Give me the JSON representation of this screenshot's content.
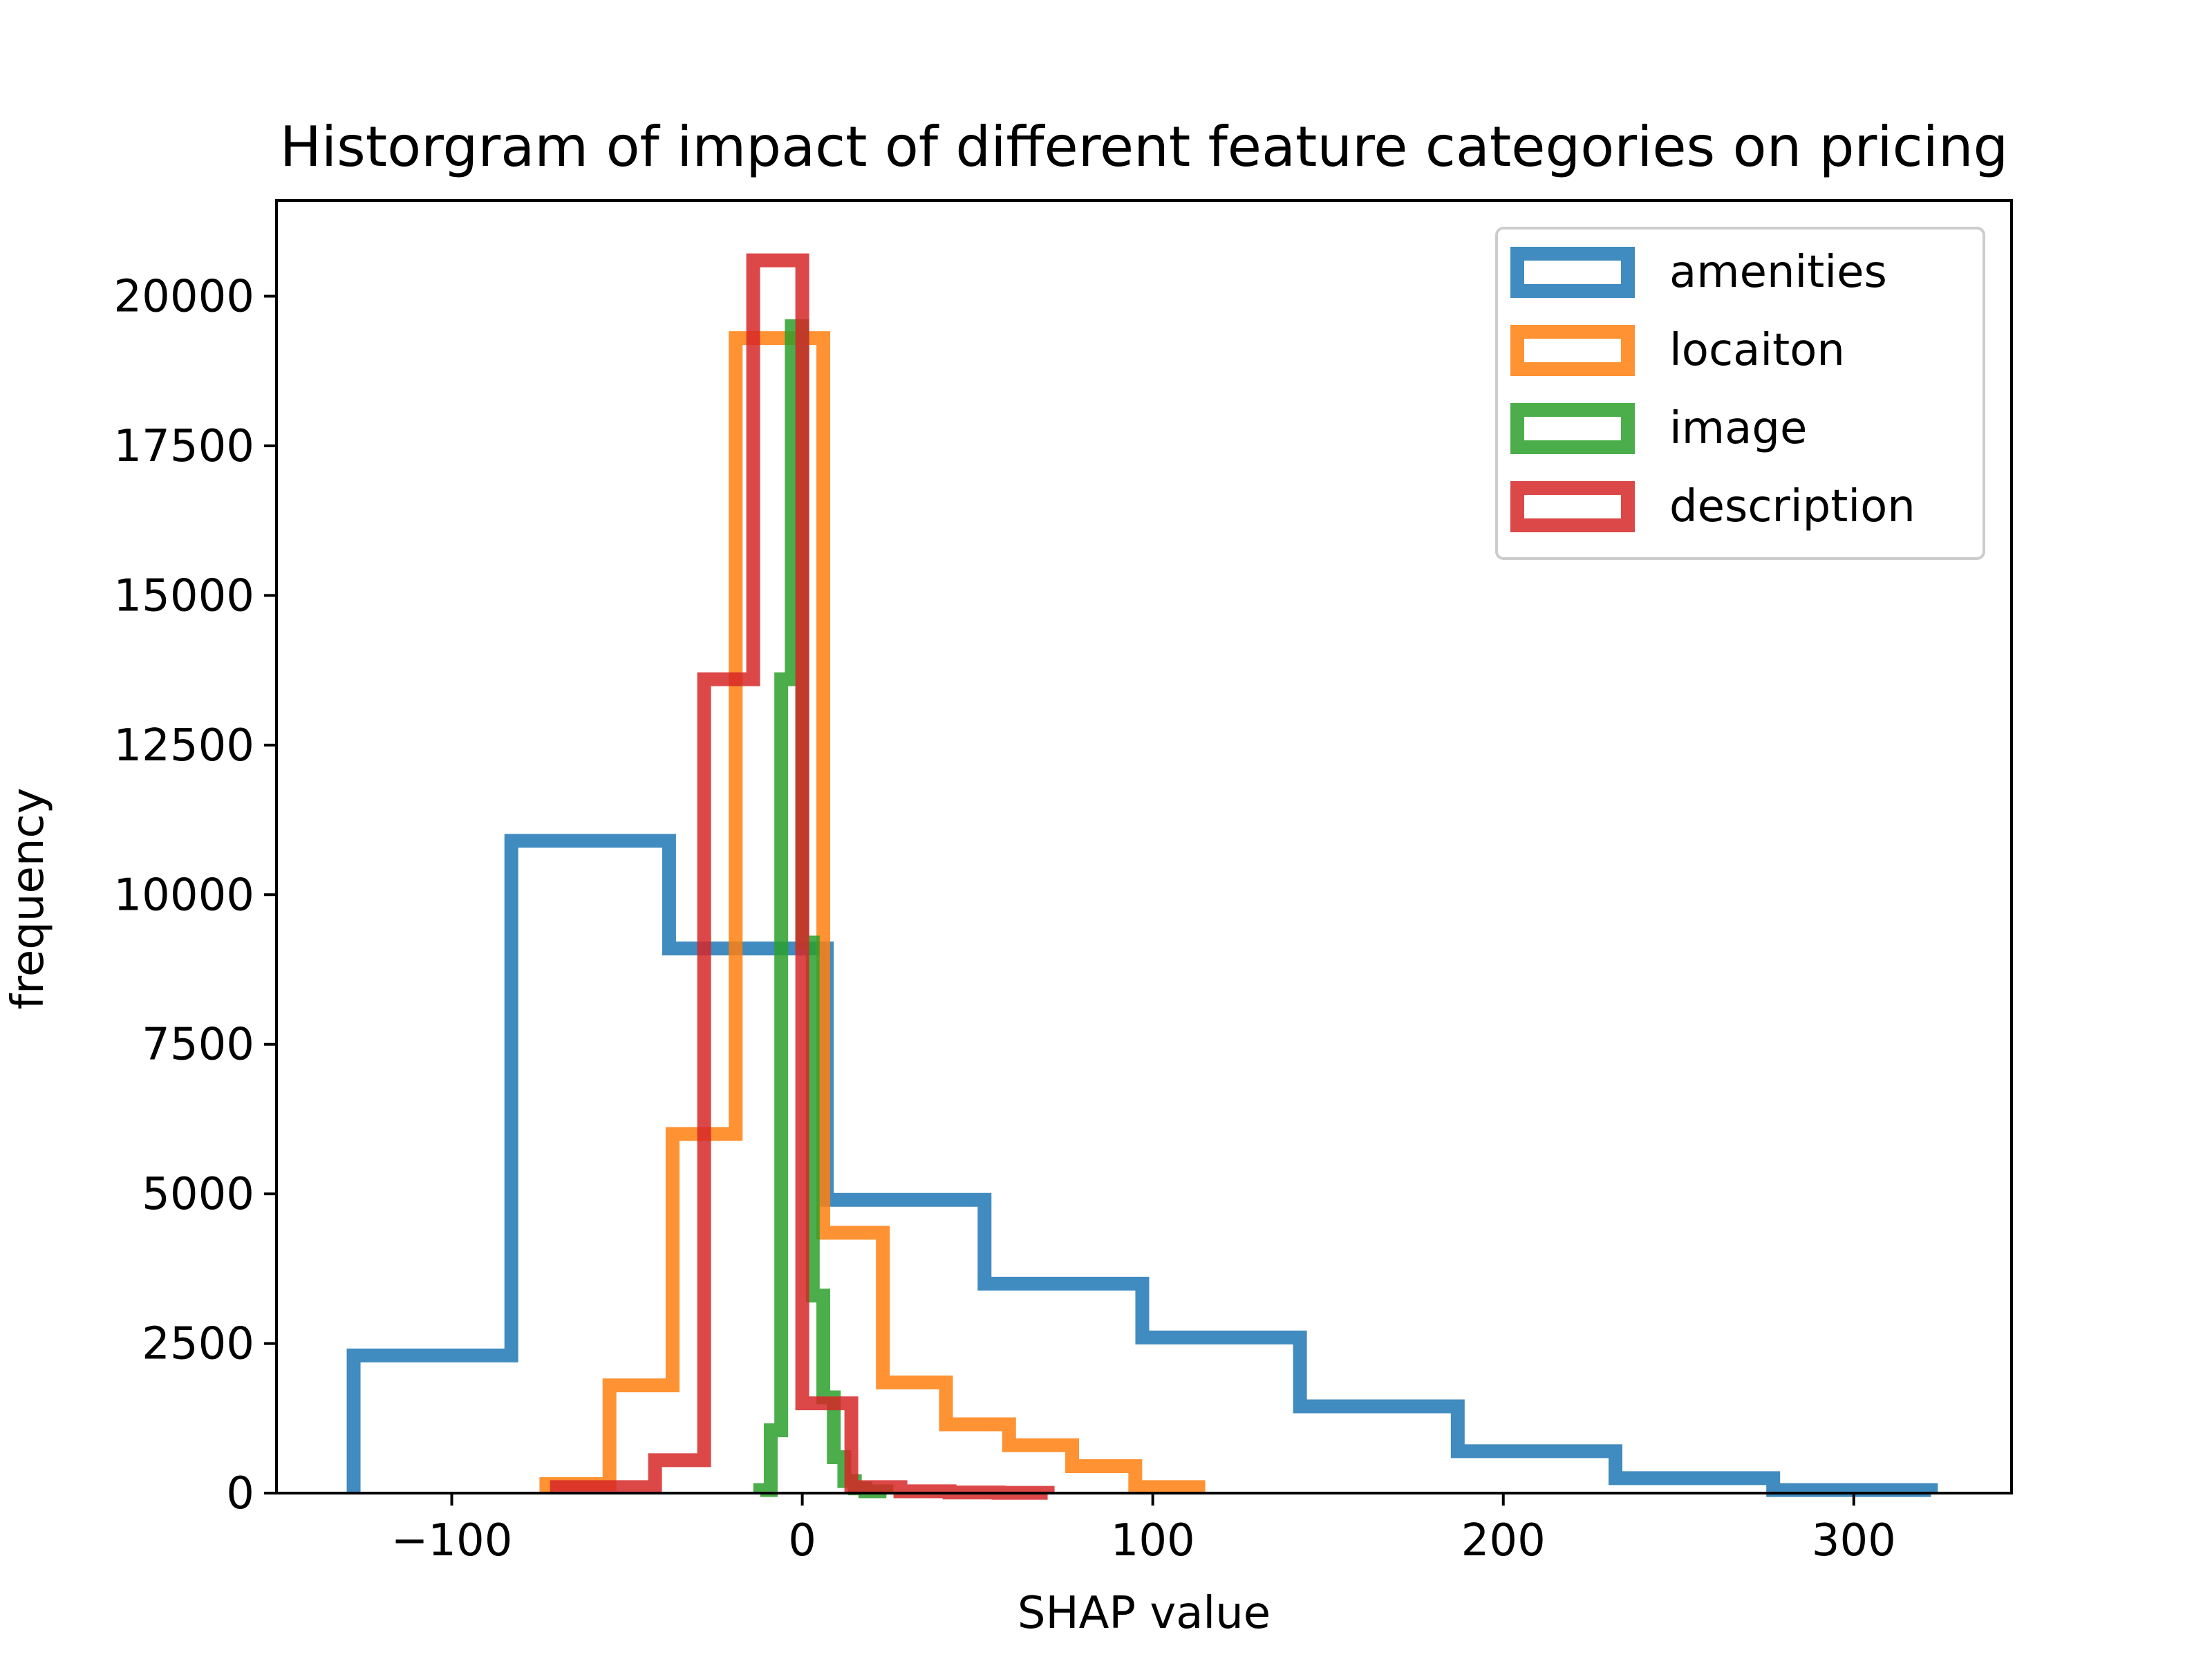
{
  "chart_data": {
    "type": "histogram",
    "title": "Historgram of impact of different feature categories on pricing",
    "xlabel": "SHAP value",
    "ylabel": "frequency",
    "xlim": [
      -150,
      345
    ],
    "ylim": [
      0,
      21600
    ],
    "xticks": [
      -100,
      0,
      100,
      200,
      300
    ],
    "xtick_labels": [
      "−100",
      "0",
      "100",
      "200",
      "300"
    ],
    "yticks": [
      0,
      2500,
      5000,
      7500,
      10000,
      12500,
      15000,
      17500,
      20000
    ],
    "ytick_labels": [
      "0",
      "2500",
      "5000",
      "7500",
      "10000",
      "12500",
      "15000",
      "17500",
      "20000"
    ],
    "legend_position": "upper right",
    "series": [
      {
        "name": "amenities",
        "color": "#1f77b4",
        "bin_edges": [
          -128,
          -83,
          -38,
          7,
          52,
          97,
          142,
          187,
          232,
          277,
          322
        ],
        "counts": [
          2300,
          10900,
          9100,
          4900,
          3500,
          2600,
          1450,
          700,
          250,
          50
        ]
      },
      {
        "name": "locaiton",
        "color": "#ff7f0e",
        "bin_edges": [
          -73,
          -55,
          -37,
          -19,
          -1,
          6,
          23,
          41,
          59,
          77,
          95,
          113
        ],
        "counts": [
          150,
          1800,
          6000,
          19300,
          19300,
          4350,
          1850,
          1150,
          800,
          450,
          100
        ]
      },
      {
        "name": "image",
        "color": "#2ca02c",
        "bin_edges": [
          -12,
          -9,
          -6,
          -3,
          0,
          3,
          6,
          9,
          12,
          15,
          18,
          24
        ],
        "counts": [
          50,
          1050,
          13600,
          19500,
          9200,
          3300,
          1600,
          600,
          200,
          80,
          30
        ]
      },
      {
        "name": "description",
        "color": "#d62728",
        "bin_edges": [
          -70,
          -56,
          -42,
          -28,
          -14,
          0,
          14,
          28,
          42,
          56,
          70
        ],
        "counts": [
          100,
          100,
          550,
          13600,
          20600,
          1500,
          100,
          30,
          10,
          5
        ]
      }
    ]
  }
}
